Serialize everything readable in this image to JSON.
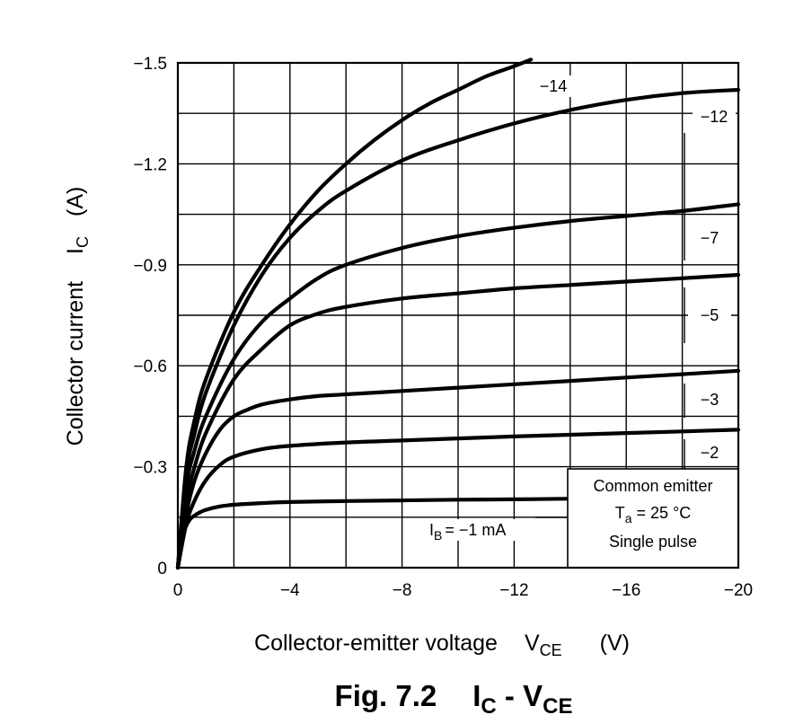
{
  "chart_data": {
    "type": "line",
    "title": "",
    "caption": {
      "main": "Fig. 7.2",
      "y_sym": "I",
      "y_sub": "C",
      "sep": " - ",
      "x_sym": "V",
      "x_sub": "CE"
    },
    "xlabel": {
      "text": "Collector-emitter voltage",
      "sym": "V",
      "sub": "CE",
      "unit": "(V)"
    },
    "ylabel": {
      "text": "Collector current",
      "sym": "I",
      "sub": "C",
      "unit": "(A)"
    },
    "xlim": [
      0,
      -20
    ],
    "ylim": [
      0,
      -1.5
    ],
    "x_ticks": [
      0,
      -4,
      -8,
      -12,
      -16,
      -20
    ],
    "x_tick_labels": [
      "0",
      "−4",
      "−8",
      "−12",
      "−16",
      "−20"
    ],
    "y_ticks": [
      0,
      -0.3,
      -0.6,
      -0.9,
      -1.2,
      -1.5
    ],
    "y_tick_labels": [
      "0",
      "−0.3",
      "−0.6",
      "−0.9",
      "−1.2",
      "−1.5"
    ],
    "grid": true,
    "grid_minor_x": 2,
    "grid_minor_y": 0.15,
    "series": [
      {
        "name": "IB = −1 mA",
        "label_text": "= −1 mA",
        "label_prefix": "I",
        "label_sub": "B",
        "x": [
          0,
          -0.2,
          -0.4,
          -0.6,
          -0.8,
          -1,
          -1.5,
          -2,
          -3,
          -4,
          -6,
          -8,
          -10,
          -12,
          -14
        ],
        "y": [
          0,
          -0.1,
          -0.14,
          -0.155,
          -0.165,
          -0.172,
          -0.182,
          -0.187,
          -0.192,
          -0.195,
          -0.198,
          -0.2,
          -0.202,
          -0.203,
          -0.205
        ]
      },
      {
        "name": "−2",
        "label_text": "−2",
        "x": [
          0,
          -0.3,
          -0.6,
          -1,
          -1.5,
          -2,
          -3,
          -4,
          -6,
          -8,
          -10,
          -12,
          -14,
          -16,
          -18,
          -20
        ],
        "y": [
          0,
          -0.13,
          -0.2,
          -0.26,
          -0.305,
          -0.33,
          -0.352,
          -0.362,
          -0.372,
          -0.378,
          -0.384,
          -0.39,
          -0.395,
          -0.4,
          -0.405,
          -0.41
        ]
      },
      {
        "name": "−3",
        "label_text": "−3",
        "x": [
          0,
          -0.3,
          -0.6,
          -1,
          -1.5,
          -2,
          -2.5,
          -3,
          -4,
          -5,
          -6,
          -8,
          -10,
          -12,
          -14,
          -16,
          -18,
          -20
        ],
        "y": [
          0,
          -0.16,
          -0.26,
          -0.34,
          -0.41,
          -0.45,
          -0.47,
          -0.485,
          -0.5,
          -0.51,
          -0.515,
          -0.525,
          -0.535,
          -0.545,
          -0.555,
          -0.565,
          -0.575,
          -0.585
        ]
      },
      {
        "name": "−5",
        "label_text": "−5",
        "x": [
          0,
          -0.3,
          -0.6,
          -1,
          -2,
          -3,
          -4,
          -5,
          -6,
          -8,
          -10,
          -12,
          -14,
          -16,
          -18,
          -20
        ],
        "y": [
          0,
          -0.2,
          -0.3,
          -0.4,
          -0.56,
          -0.65,
          -0.72,
          -0.755,
          -0.775,
          -0.8,
          -0.815,
          -0.83,
          -0.84,
          -0.85,
          -0.86,
          -0.87
        ]
      },
      {
        "name": "−7",
        "label_text": "−7",
        "x": [
          0,
          -0.3,
          -0.6,
          -1,
          -2,
          -3,
          -4,
          -5,
          -6,
          -8,
          -10,
          -12,
          -14,
          -16,
          -18,
          -20
        ],
        "y": [
          0,
          -0.24,
          -0.35,
          -0.45,
          -0.62,
          -0.73,
          -0.8,
          -0.86,
          -0.9,
          -0.95,
          -0.985,
          -1.01,
          -1.03,
          -1.045,
          -1.06,
          -1.08
        ]
      },
      {
        "name": "−12",
        "label_text": "−12",
        "x": [
          0,
          -0.3,
          -0.6,
          -1,
          -2,
          -3,
          -4,
          -5,
          -6,
          -8,
          -10,
          -12,
          -14,
          -16,
          -18,
          -20
        ],
        "y": [
          0,
          -0.28,
          -0.4,
          -0.52,
          -0.72,
          -0.87,
          -0.98,
          -1.06,
          -1.12,
          -1.21,
          -1.27,
          -1.32,
          -1.36,
          -1.39,
          -1.41,
          -1.42
        ]
      },
      {
        "name": "−14",
        "label_text": "−14",
        "x": [
          0,
          -0.3,
          -0.6,
          -1,
          -2,
          -3,
          -4,
          -5,
          -6,
          -7,
          -8,
          -9,
          -10,
          -11,
          -12,
          -12.6
        ],
        "y": [
          0,
          -0.3,
          -0.44,
          -0.56,
          -0.76,
          -0.9,
          -1.02,
          -1.12,
          -1.2,
          -1.27,
          -1.33,
          -1.38,
          -1.42,
          -1.46,
          -1.49,
          -1.51
        ]
      }
    ],
    "legend": {
      "placement": "bottom-right",
      "line1": "Common emitter",
      "line2_sym": "T",
      "line2_sub": "a",
      "line2_rest": " = 25 °C",
      "line3": "Single pulse"
    }
  }
}
